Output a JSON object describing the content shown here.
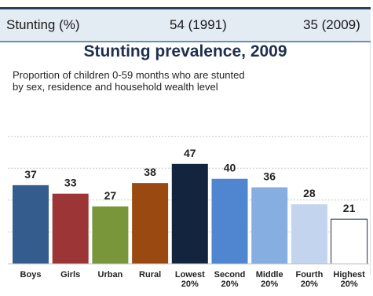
{
  "header": {
    "label": "Stunting (%)",
    "value_1991": "54 (1991)",
    "value_2009": "35 (2009)"
  },
  "chart_data": {
    "type": "bar",
    "title": "Stunting prevalence, 2009",
    "subtitle_lines": [
      "Proportion of children 0-59 months who are stunted",
      "by sex, residence and household wealth level"
    ],
    "categories": [
      [
        "Boys"
      ],
      [
        "Girls"
      ],
      [
        "Urban"
      ],
      [
        "Rural"
      ],
      [
        "Lowest",
        "20%"
      ],
      [
        "Second",
        "20%"
      ],
      [
        "Middle",
        "20%"
      ],
      [
        "Fourth",
        "20%"
      ],
      [
        "Highest",
        "20%"
      ]
    ],
    "values": [
      37,
      33,
      27,
      38,
      47,
      40,
      36,
      28,
      21
    ],
    "colors": [
      "#345c8d",
      "#9c3636",
      "#7a963a",
      "#9a4a10",
      "#13243f",
      "#4f86cf",
      "#86aee0",
      "#c3d5ee",
      "#ffffff"
    ],
    "ylim": [
      0,
      75
    ],
    "grid": "dotted horizontal",
    "legend": "none"
  }
}
